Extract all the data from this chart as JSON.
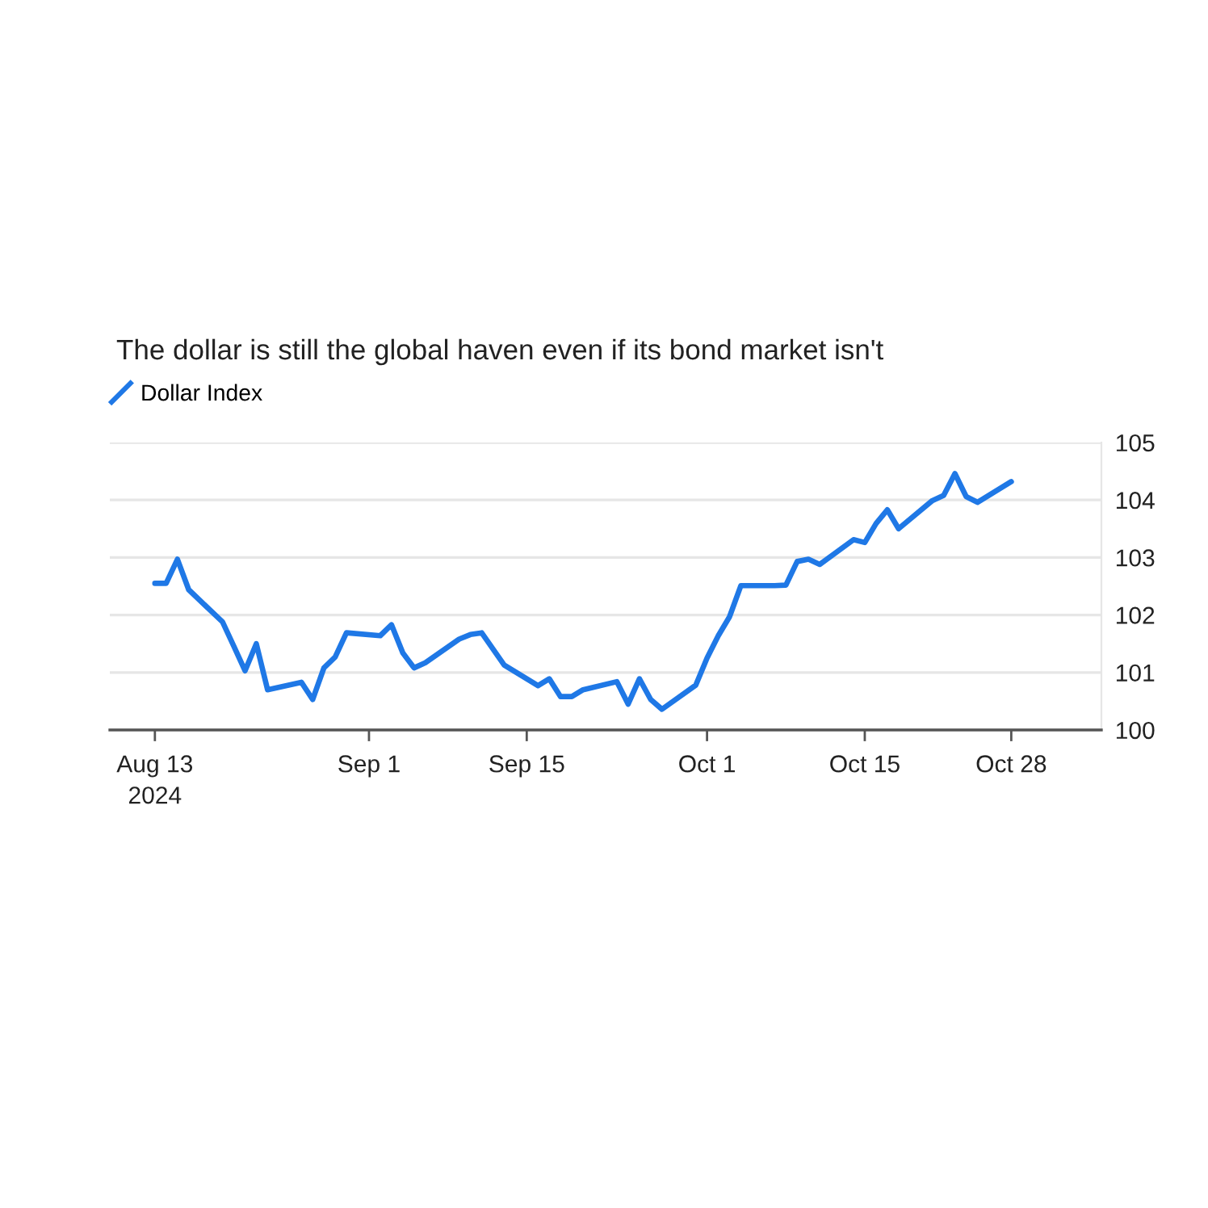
{
  "chart_data": {
    "type": "line",
    "title": "The dollar is still the global haven even if its bond market isn't",
    "x": [
      "2024-08-13",
      "2024-08-14",
      "2024-08-15",
      "2024-08-16",
      "2024-08-19",
      "2024-08-20",
      "2024-08-21",
      "2024-08-22",
      "2024-08-23",
      "2024-08-26",
      "2024-08-27",
      "2024-08-28",
      "2024-08-29",
      "2024-08-30",
      "2024-09-02",
      "2024-09-03",
      "2024-09-04",
      "2024-09-05",
      "2024-09-06",
      "2024-09-09",
      "2024-09-10",
      "2024-09-11",
      "2024-09-12",
      "2024-09-13",
      "2024-09-16",
      "2024-09-17",
      "2024-09-18",
      "2024-09-19",
      "2024-09-20",
      "2024-09-23",
      "2024-09-24",
      "2024-09-25",
      "2024-09-26",
      "2024-09-27",
      "2024-09-30",
      "2024-10-01",
      "2024-10-02",
      "2024-10-03",
      "2024-10-04",
      "2024-10-07",
      "2024-10-08",
      "2024-10-09",
      "2024-10-10",
      "2024-10-11",
      "2024-10-14",
      "2024-10-15",
      "2024-10-16",
      "2024-10-17",
      "2024-10-18",
      "2024-10-21",
      "2024-10-22",
      "2024-10-23",
      "2024-10-24",
      "2024-10-25",
      "2024-10-28"
    ],
    "series": [
      {
        "name": "Dollar Index",
        "color": "#1f78e6",
        "values": [
          102.55,
          102.55,
          102.97,
          102.44,
          101.88,
          101.46,
          101.03,
          101.5,
          100.7,
          100.83,
          100.53,
          101.08,
          101.27,
          101.69,
          101.64,
          101.83,
          101.34,
          101.08,
          101.17,
          101.58,
          101.66,
          101.69,
          101.41,
          101.13,
          100.77,
          100.89,
          100.58,
          100.58,
          100.7,
          100.84,
          100.45,
          100.89,
          100.53,
          100.36,
          100.78,
          101.25,
          101.64,
          101.97,
          102.51,
          102.51,
          102.52,
          102.93,
          102.97,
          102.88,
          103.31,
          103.26,
          103.59,
          103.83,
          103.5,
          103.99,
          104.08,
          104.46,
          104.06,
          103.96,
          104.32
        ]
      }
    ],
    "xlim": [
      "2024-08-09",
      "2024-11-05"
    ],
    "ylim": [
      100,
      105
    ],
    "xticks": [
      {
        "value": "2024-08-13",
        "label": "Aug 13\n2024"
      },
      {
        "value": "2024-09-01",
        "label": "Sep 1"
      },
      {
        "value": "2024-09-15",
        "label": "Sep 15"
      },
      {
        "value": "2024-10-01",
        "label": "Oct 1"
      },
      {
        "value": "2024-10-15",
        "label": "Oct 15"
      },
      {
        "value": "2024-10-28",
        "label": "Oct 28"
      }
    ],
    "yticks": [
      100,
      101,
      102,
      103,
      104,
      105
    ],
    "grid": "y",
    "legend": "top left",
    "marker": "none",
    "line_style": "solid"
  }
}
